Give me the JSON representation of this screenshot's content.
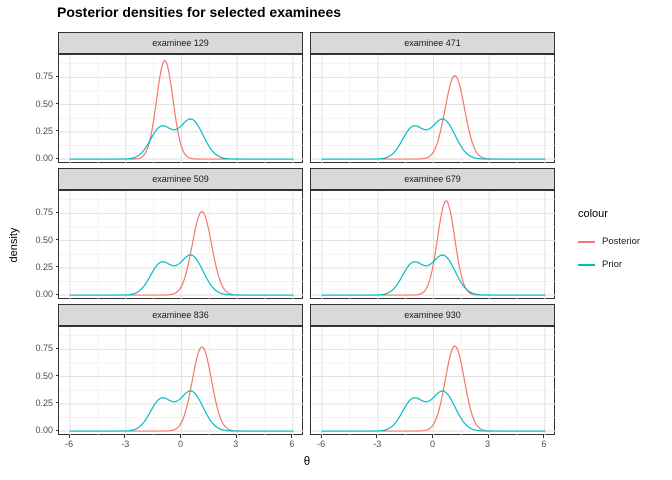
{
  "title": "Posterior densities for selected examinees",
  "chart_data": {
    "type": "line",
    "title": "Posterior densities for selected examinees",
    "xlabel": "θ",
    "ylabel": "density",
    "x_ticks": [
      "-6",
      "-3",
      "0",
      "3",
      "6"
    ],
    "y_ticks": [
      "0.75",
      "0.50",
      "0.25",
      "0.00"
    ],
    "x_major": [
      -6,
      -3,
      0,
      3,
      6
    ],
    "x_minor": [
      -4.5,
      -1.5,
      1.5,
      4.5
    ],
    "y_major": [
      0,
      0.25,
      0.5,
      0.75
    ],
    "y_minor": [
      0.125,
      0.375,
      0.625,
      0.875
    ],
    "x_domain": [
      -6.6,
      6.6
    ],
    "y_domain": [
      -0.0455,
      0.9555
    ],
    "x_range_data": [
      -6,
      6
    ],
    "grid": "on",
    "legend": {
      "title": "colour",
      "position": "right",
      "entries": [
        {
          "label": "Posterior",
          "color": "#F8766D"
        },
        {
          "label": "Prior",
          "color": "#00BFC4"
        }
      ]
    },
    "prior": {
      "label": "Prior",
      "color": "#00BFC4",
      "mixture": [
        {
          "weight": 0.42,
          "mean": -1.1,
          "sd": 0.58
        },
        {
          "weight": 0.58,
          "mean": 0.52,
          "sd": 0.64
        }
      ],
      "peaks": [
        {
          "x": -1.08,
          "y": 0.3
        },
        {
          "x": 0.55,
          "y": 0.37
        }
      ]
    },
    "facets": [
      {
        "label": "examinee 129",
        "posterior": {
          "mean": -0.9,
          "sd": 0.44,
          "peak": 0.91
        }
      },
      {
        "label": "examinee 471",
        "posterior": {
          "mean": 1.15,
          "sd": 0.52,
          "peak": 0.77
        }
      },
      {
        "label": "examinee 509",
        "posterior": {
          "mean": 1.1,
          "sd": 0.52,
          "peak": 0.77
        }
      },
      {
        "label": "examinee 679",
        "posterior": {
          "mean": 0.68,
          "sd": 0.46,
          "peak": 0.87
        }
      },
      {
        "label": "examinee 836",
        "posterior": {
          "mean": 1.1,
          "sd": 0.515,
          "peak": 0.775
        }
      },
      {
        "label": "examinee 930",
        "posterior": {
          "mean": 1.15,
          "sd": 0.51,
          "peak": 0.78
        }
      }
    ],
    "colors": {
      "posterior": "#F8766D",
      "prior": "#00BFC4",
      "grid_major": "#E3E3E3",
      "grid_minor": "#F0F0F0",
      "panel_border": "#333333",
      "strip_bg": "#D9D9D9",
      "tick_text": "#4D4D4D"
    }
  }
}
